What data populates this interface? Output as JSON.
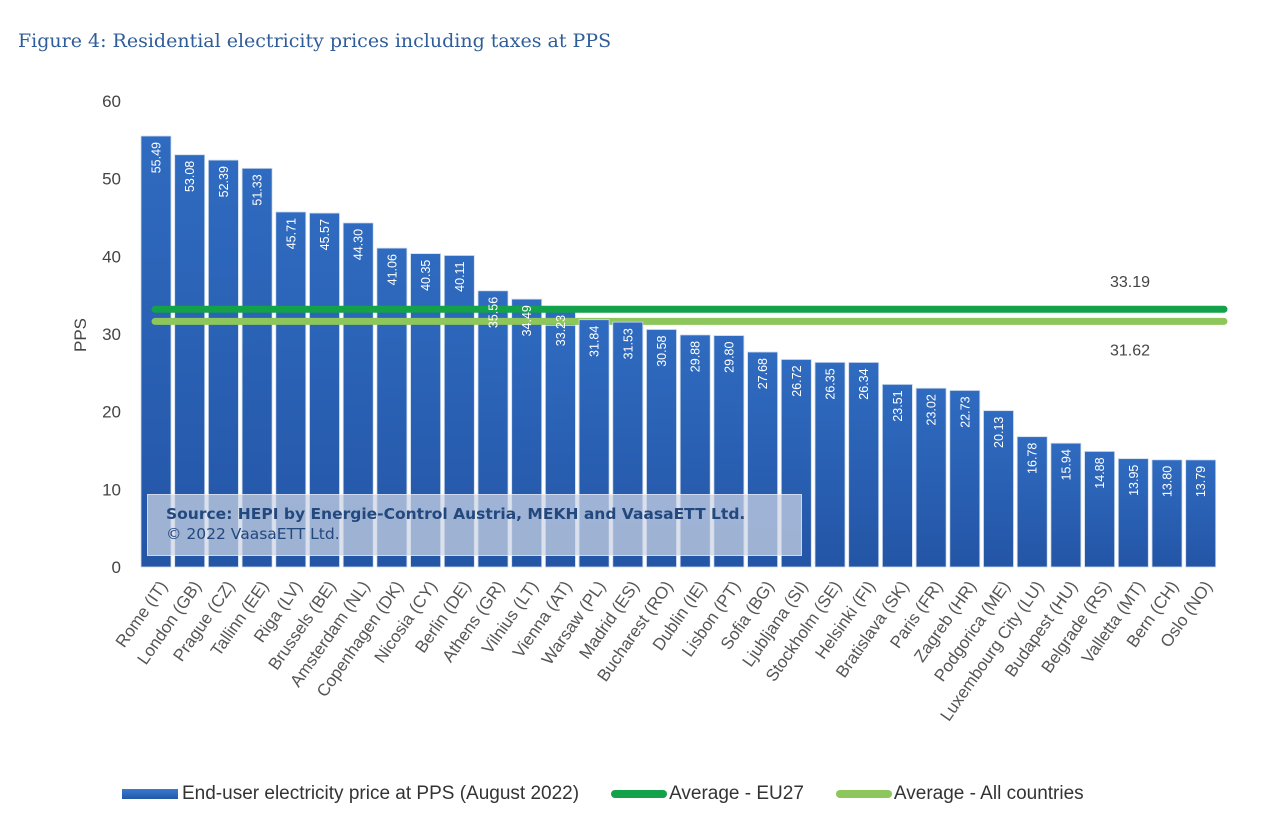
{
  "figure_title": "Figure 4: Residential electricity prices including taxes at PPS",
  "source": {
    "line1": "Source: HEPI by Energie-Control Austria, MEKH and VaasaETT Ltd.",
    "line2": "© 2022 VaasaETT Ltd."
  },
  "colors": {
    "bar": "#2f6bc0",
    "bar_dark": "#2455a6",
    "eu27_line": "#13a14a",
    "all_line": "#8dc65a"
  },
  "chart_data": {
    "type": "bar",
    "title": "Residential electricity prices including taxes at PPS",
    "xlabel": "",
    "ylabel": "PPS",
    "ylim": [
      0,
      60
    ],
    "yticks": [
      0,
      10,
      20,
      30,
      40,
      50,
      60
    ],
    "grid": false,
    "legend_position": "bottom",
    "categories": [
      "Rome (IT)",
      "London (GB)",
      "Prague (CZ)",
      "Tallinn (EE)",
      "Riga (LV)",
      "Brussels (BE)",
      "Amsterdam (NL)",
      "Copenhagen (DK)",
      "Nicosia (CY)",
      "Berlin (DE)",
      "Athens (GR)",
      "Vilnius (LT)",
      "Vienna (AT)",
      "Warsaw (PL)",
      "Madrid (ES)",
      "Bucharest (RO)",
      "Dublin (IE)",
      "Lisbon (PT)",
      "Sofia (BG)",
      "Ljubljana (SI)",
      "Stockholm (SE)",
      "Helsinki (FI)",
      "Bratislava (SK)",
      "Paris (FR)",
      "Zagreb (HR)",
      "Podgorica (ME)",
      "Luxembourg City (LU)",
      "Budapest (HU)",
      "Belgrade (RS)",
      "Valletta (MT)",
      "Bern (CH)",
      "Oslo (NO)"
    ],
    "series": [
      {
        "name": "End-user electricity price at PPS (August 2022)",
        "type": "bar",
        "values": [
          55.49,
          53.08,
          52.39,
          51.33,
          45.71,
          45.57,
          44.3,
          41.06,
          40.35,
          40.11,
          35.56,
          34.49,
          33.23,
          31.84,
          31.53,
          30.58,
          29.88,
          29.8,
          27.68,
          26.72,
          26.35,
          26.34,
          23.51,
          23.02,
          22.73,
          20.13,
          16.78,
          15.94,
          14.88,
          13.95,
          13.8,
          13.79
        ],
        "labels": [
          "55.49",
          "53.08",
          "52.39",
          "51.33",
          "45.71",
          "45.57",
          "44.30",
          "41.06",
          "40.35",
          "40.11",
          "35.56",
          "34.49",
          "33.23",
          "31.84",
          "31.53",
          "30.58",
          "29.88",
          "29.80",
          "27.68",
          "26.72",
          "26.35",
          "26.34",
          "23.51",
          "23.02",
          "22.73",
          "20.13",
          "16.78",
          "15.94",
          "14.88",
          "13.95",
          "13.80",
          "13.79"
        ]
      },
      {
        "name": "Average - EU27",
        "type": "hline",
        "value": 33.19,
        "label": "33.19"
      },
      {
        "name": "Average - All countries",
        "type": "hline",
        "value": 31.62,
        "label": "31.62"
      }
    ]
  }
}
